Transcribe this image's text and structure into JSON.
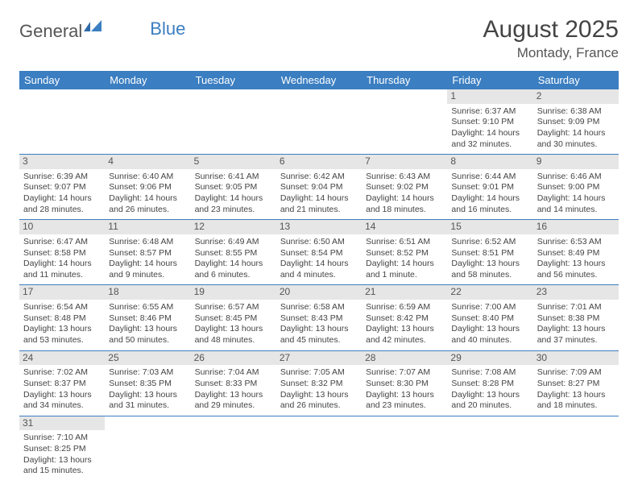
{
  "logo": {
    "part1": "General",
    "part2": "Blue"
  },
  "title": "August 2025",
  "subtitle": "Montady, France",
  "weekdays": [
    "Sunday",
    "Monday",
    "Tuesday",
    "Wednesday",
    "Thursday",
    "Friday",
    "Saturday"
  ],
  "colors": {
    "header_bg": "#3b7ec1",
    "header_fg": "#ffffff",
    "daynum_bg": "#e6e6e6",
    "row_border": "#3b7ec1",
    "text": "#444444",
    "logo_gray": "#555555",
    "logo_blue": "#3b7ec1"
  },
  "font_sizes": {
    "title": 30,
    "subtitle": 17,
    "weekday_header": 13,
    "daynum": 12,
    "cell": 10.5
  },
  "grid": {
    "cols": 7,
    "rows": 6,
    "first_weekday_index": 5,
    "days_in_month": 31
  },
  "days": [
    {
      "n": 1,
      "sunrise": "6:37 AM",
      "sunset": "9:10 PM",
      "daylight": "14 hours and 32 minutes."
    },
    {
      "n": 2,
      "sunrise": "6:38 AM",
      "sunset": "9:09 PM",
      "daylight": "14 hours and 30 minutes."
    },
    {
      "n": 3,
      "sunrise": "6:39 AM",
      "sunset": "9:07 PM",
      "daylight": "14 hours and 28 minutes."
    },
    {
      "n": 4,
      "sunrise": "6:40 AM",
      "sunset": "9:06 PM",
      "daylight": "14 hours and 26 minutes."
    },
    {
      "n": 5,
      "sunrise": "6:41 AM",
      "sunset": "9:05 PM",
      "daylight": "14 hours and 23 minutes."
    },
    {
      "n": 6,
      "sunrise": "6:42 AM",
      "sunset": "9:04 PM",
      "daylight": "14 hours and 21 minutes."
    },
    {
      "n": 7,
      "sunrise": "6:43 AM",
      "sunset": "9:02 PM",
      "daylight": "14 hours and 18 minutes."
    },
    {
      "n": 8,
      "sunrise": "6:44 AM",
      "sunset": "9:01 PM",
      "daylight": "14 hours and 16 minutes."
    },
    {
      "n": 9,
      "sunrise": "6:46 AM",
      "sunset": "9:00 PM",
      "daylight": "14 hours and 14 minutes."
    },
    {
      "n": 10,
      "sunrise": "6:47 AM",
      "sunset": "8:58 PM",
      "daylight": "14 hours and 11 minutes."
    },
    {
      "n": 11,
      "sunrise": "6:48 AM",
      "sunset": "8:57 PM",
      "daylight": "14 hours and 9 minutes."
    },
    {
      "n": 12,
      "sunrise": "6:49 AM",
      "sunset": "8:55 PM",
      "daylight": "14 hours and 6 minutes."
    },
    {
      "n": 13,
      "sunrise": "6:50 AM",
      "sunset": "8:54 PM",
      "daylight": "14 hours and 4 minutes."
    },
    {
      "n": 14,
      "sunrise": "6:51 AM",
      "sunset": "8:52 PM",
      "daylight": "14 hours and 1 minute."
    },
    {
      "n": 15,
      "sunrise": "6:52 AM",
      "sunset": "8:51 PM",
      "daylight": "13 hours and 58 minutes."
    },
    {
      "n": 16,
      "sunrise": "6:53 AM",
      "sunset": "8:49 PM",
      "daylight": "13 hours and 56 minutes."
    },
    {
      "n": 17,
      "sunrise": "6:54 AM",
      "sunset": "8:48 PM",
      "daylight": "13 hours and 53 minutes."
    },
    {
      "n": 18,
      "sunrise": "6:55 AM",
      "sunset": "8:46 PM",
      "daylight": "13 hours and 50 minutes."
    },
    {
      "n": 19,
      "sunrise": "6:57 AM",
      "sunset": "8:45 PM",
      "daylight": "13 hours and 48 minutes."
    },
    {
      "n": 20,
      "sunrise": "6:58 AM",
      "sunset": "8:43 PM",
      "daylight": "13 hours and 45 minutes."
    },
    {
      "n": 21,
      "sunrise": "6:59 AM",
      "sunset": "8:42 PM",
      "daylight": "13 hours and 42 minutes."
    },
    {
      "n": 22,
      "sunrise": "7:00 AM",
      "sunset": "8:40 PM",
      "daylight": "13 hours and 40 minutes."
    },
    {
      "n": 23,
      "sunrise": "7:01 AM",
      "sunset": "8:38 PM",
      "daylight": "13 hours and 37 minutes."
    },
    {
      "n": 24,
      "sunrise": "7:02 AM",
      "sunset": "8:37 PM",
      "daylight": "13 hours and 34 minutes."
    },
    {
      "n": 25,
      "sunrise": "7:03 AM",
      "sunset": "8:35 PM",
      "daylight": "13 hours and 31 minutes."
    },
    {
      "n": 26,
      "sunrise": "7:04 AM",
      "sunset": "8:33 PM",
      "daylight": "13 hours and 29 minutes."
    },
    {
      "n": 27,
      "sunrise": "7:05 AM",
      "sunset": "8:32 PM",
      "daylight": "13 hours and 26 minutes."
    },
    {
      "n": 28,
      "sunrise": "7:07 AM",
      "sunset": "8:30 PM",
      "daylight": "13 hours and 23 minutes."
    },
    {
      "n": 29,
      "sunrise": "7:08 AM",
      "sunset": "8:28 PM",
      "daylight": "13 hours and 20 minutes."
    },
    {
      "n": 30,
      "sunrise": "7:09 AM",
      "sunset": "8:27 PM",
      "daylight": "13 hours and 18 minutes."
    },
    {
      "n": 31,
      "sunrise": "7:10 AM",
      "sunset": "8:25 PM",
      "daylight": "13 hours and 15 minutes."
    }
  ],
  "labels": {
    "sunrise": "Sunrise: ",
    "sunset": "Sunset: ",
    "daylight": "Daylight: "
  }
}
